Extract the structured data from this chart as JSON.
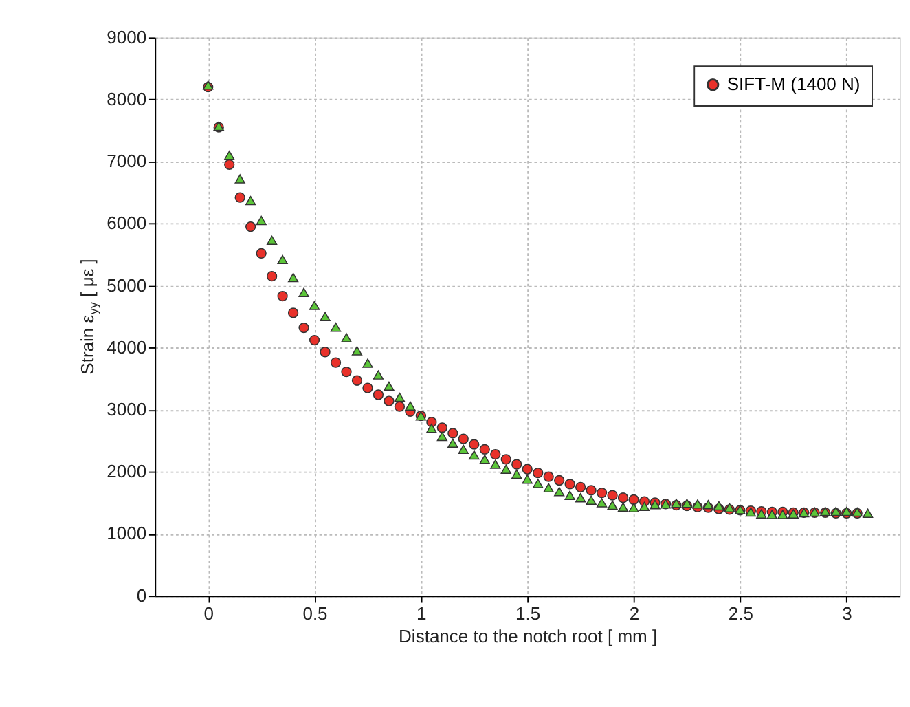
{
  "chart_data": {
    "type": "scatter",
    "xlabel": "Distance to the notch root [ mm ]",
    "ylabel": "Strain ε$_{yy}$ [ με ]",
    "xlim": [
      -0.25,
      3.25
    ],
    "xticks": [
      0,
      0.5,
      1,
      1.5,
      2,
      2.5,
      3
    ],
    "ylim": [
      0,
      9000
    ],
    "yticks": [
      0,
      1000,
      2000,
      3000,
      4000,
      5000,
      6000,
      7000,
      8000,
      9000
    ],
    "grid": true,
    "legend": "top right",
    "series": [
      {
        "name": "SIFT-M (1400 N)",
        "color": "#e8312a",
        "marker": "circle",
        "x": [
          0,
          0.05,
          0.1,
          0.15,
          0.2,
          0.25,
          0.3,
          0.35,
          0.4,
          0.45,
          0.5,
          0.55,
          0.6,
          0.65,
          0.7,
          0.75,
          0.8,
          0.85,
          0.9,
          0.95,
          1.0,
          1.05,
          1.1,
          1.15,
          1.2,
          1.25,
          1.3,
          1.35,
          1.4,
          1.45,
          1.5,
          1.55,
          1.6,
          1.65,
          1.7,
          1.75,
          1.8,
          1.85,
          1.9,
          1.95,
          2.0,
          2.05,
          2.1,
          2.15,
          2.2,
          2.25,
          2.3,
          2.35,
          2.4,
          2.45,
          2.5,
          2.55,
          2.6,
          2.65,
          2.7,
          2.75,
          2.8,
          2.85,
          2.9,
          2.95,
          3.0,
          3.05
        ],
        "values": [
          8200,
          7550,
          6950,
          6420,
          5950,
          5520,
          5150,
          4830,
          4560,
          4320,
          4120,
          3930,
          3760,
          3610,
          3470,
          3350,
          3240,
          3140,
          3050,
          2970,
          2900,
          2800,
          2710,
          2620,
          2530,
          2440,
          2360,
          2280,
          2200,
          2120,
          2040,
          1980,
          1920,
          1860,
          1800,
          1750,
          1700,
          1660,
          1620,
          1580,
          1550,
          1520,
          1500,
          1480,
          1460,
          1450,
          1430,
          1420,
          1400,
          1390,
          1380,
          1370,
          1360,
          1350,
          1350,
          1340,
          1340,
          1340,
          1340,
          1330,
          1330,
          1330
        ]
      },
      {
        "color": "#5cc639",
        "marker": "triangle",
        "x": [
          0,
          0.05,
          0.1,
          0.15,
          0.2,
          0.25,
          0.3,
          0.35,
          0.4,
          0.45,
          0.5,
          0.55,
          0.6,
          0.65,
          0.7,
          0.75,
          0.8,
          0.85,
          0.9,
          0.95,
          1.0,
          1.05,
          1.1,
          1.15,
          1.2,
          1.25,
          1.3,
          1.35,
          1.4,
          1.45,
          1.5,
          1.55,
          1.6,
          1.65,
          1.7,
          1.75,
          1.8,
          1.85,
          1.9,
          1.95,
          2.0,
          2.05,
          2.1,
          2.15,
          2.2,
          2.25,
          2.3,
          2.35,
          2.4,
          2.45,
          2.5,
          2.55,
          2.6,
          2.65,
          2.7,
          2.75,
          2.8,
          2.85,
          2.9,
          2.95,
          3.0,
          3.05,
          3.1
        ],
        "values": [
          8230,
          7570,
          7100,
          6720,
          6370,
          6050,
          5730,
          5420,
          5130,
          4890,
          4680,
          4500,
          4330,
          4160,
          3950,
          3750,
          3560,
          3380,
          3200,
          3060,
          2900,
          2700,
          2570,
          2460,
          2360,
          2270,
          2200,
          2120,
          2040,
          1960,
          1880,
          1810,
          1740,
          1680,
          1620,
          1580,
          1540,
          1500,
          1460,
          1430,
          1420,
          1440,
          1470,
          1480,
          1490,
          1490,
          1480,
          1470,
          1450,
          1420,
          1390,
          1350,
          1320,
          1310,
          1310,
          1320,
          1340,
          1350,
          1360,
          1360,
          1360,
          1350,
          1330
        ]
      }
    ]
  }
}
